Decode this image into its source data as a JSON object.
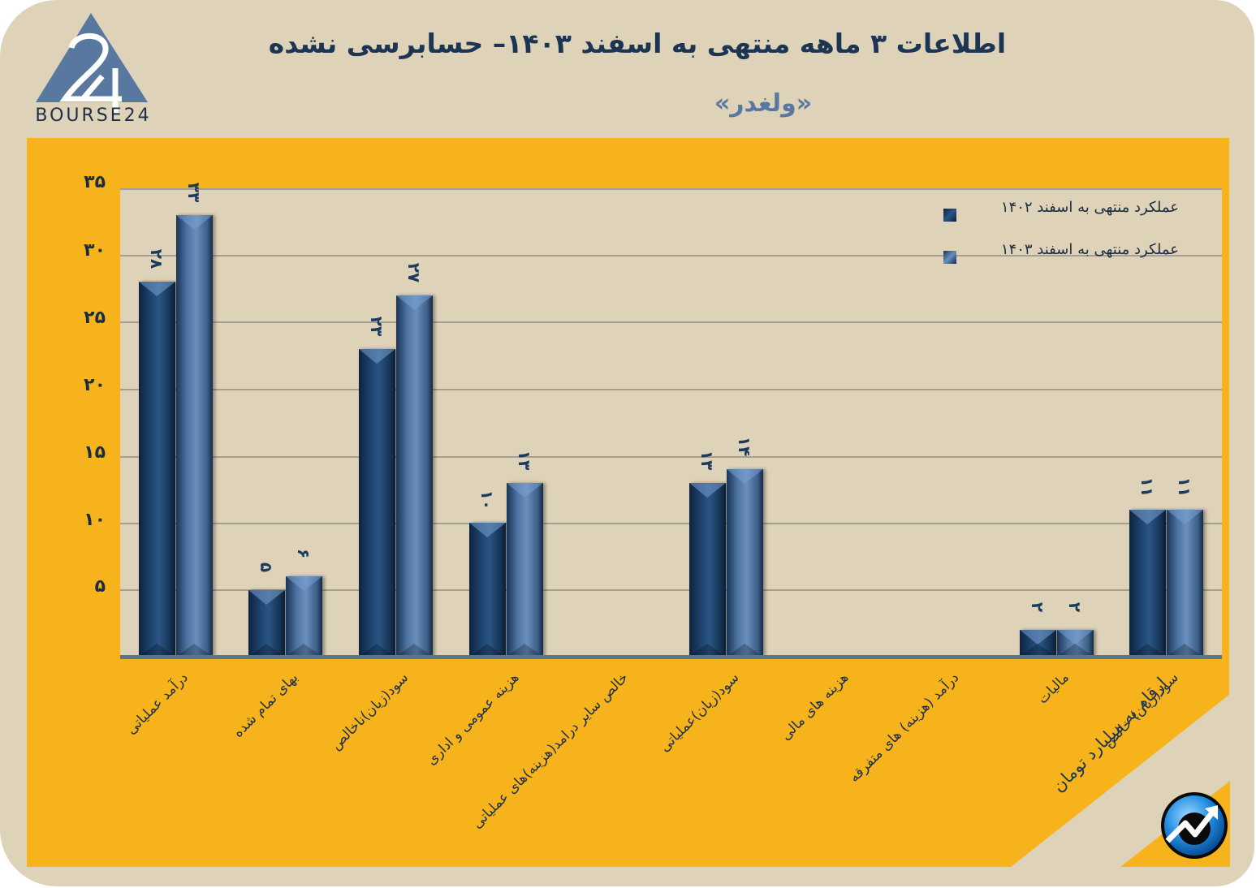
{
  "header": {
    "title": "اطلاعات ۳ ماهه منتهی به اسفند  ۱۴۰۳– حسابرسی نشده",
    "subtitle": "«ولغدر»",
    "logo_text": "BOURSE24",
    "logo_icon": "bourse24-triangle-logo"
  },
  "note": {
    "unit": "ارقام به میلیارد تومان",
    "badge_icon": "growth-arrow-icon"
  },
  "colors": {
    "background": "#ded3b9",
    "panel": "#f7b31b",
    "series_1402": "#1e4672",
    "series_1403": "#5a80ae",
    "text_dark": "#1c3553",
    "subtitle": "#5878a0"
  },
  "legend": [
    {
      "label": "عملکرد منتهی به اسفند ۱۴۰۲",
      "series": "s1"
    },
    {
      "label": "عملکرد منتهی به اسفند ۱۴۰۳",
      "series": "s2"
    }
  ],
  "y_ticks": [
    "۳۵",
    "۳۰",
    "۲۵",
    "۲۰",
    "۱۵",
    "۱۰",
    "۵"
  ],
  "categories": [
    "درآمد عملیاتی",
    "بهای تمام شده",
    "سود(زیان)ناخالص",
    "هزینه عمومی و اداری",
    "خالص سایر درامد(هزینه)های عملیاتی",
    "سود(زیان)عملیاتی",
    "هزینه های مالی",
    "درآمد (هزینه) های متفرقه",
    "مالیات",
    "سود(زیان) خالص"
  ],
  "bar_labels": {
    "s1": [
      "۲۸",
      "۵",
      "۲۳",
      "۱۰",
      "",
      "۱۳",
      "",
      "",
      "۲",
      "۱۱"
    ],
    "s2": [
      "۳۳",
      "۶",
      "۲۷",
      "۱۳",
      "",
      "۱۴",
      "",
      "",
      "۲",
      "۱۱"
    ]
  },
  "chart_data": {
    "type": "bar",
    "title": "اطلاعات ۳ ماهه منتهی به اسفند ۱۴۰۳– حسابرسی نشده",
    "subtitle": "«ولغدر»",
    "xlabel": "",
    "ylabel": "ارقام به میلیارد تومان",
    "ylim": [
      0,
      35
    ],
    "y_ticks": [
      5,
      10,
      15,
      20,
      25,
      30,
      35
    ],
    "grid": true,
    "legend_position": "top-right",
    "categories": [
      "درآمد عملیاتی",
      "بهای تمام شده",
      "سود(زیان)ناخالص",
      "هزینه عمومی و اداری",
      "خالص سایر درامد(هزینه)های عملیاتی",
      "سود(زیان)عملیاتی",
      "هزینه های مالی",
      "درآمد (هزینه) های متفرقه",
      "مالیات",
      "سود(زیان) خالص"
    ],
    "series": [
      {
        "name": "عملکرد منتهی به اسفند ۱۴۰۲",
        "values": [
          28,
          5,
          23,
          10,
          0,
          13,
          0,
          0,
          2,
          11
        ]
      },
      {
        "name": "عملکرد منتهی به اسفند ۱۴۰۳",
        "values": [
          33,
          6,
          27,
          13,
          0,
          14,
          0,
          0,
          2,
          11
        ]
      }
    ]
  }
}
